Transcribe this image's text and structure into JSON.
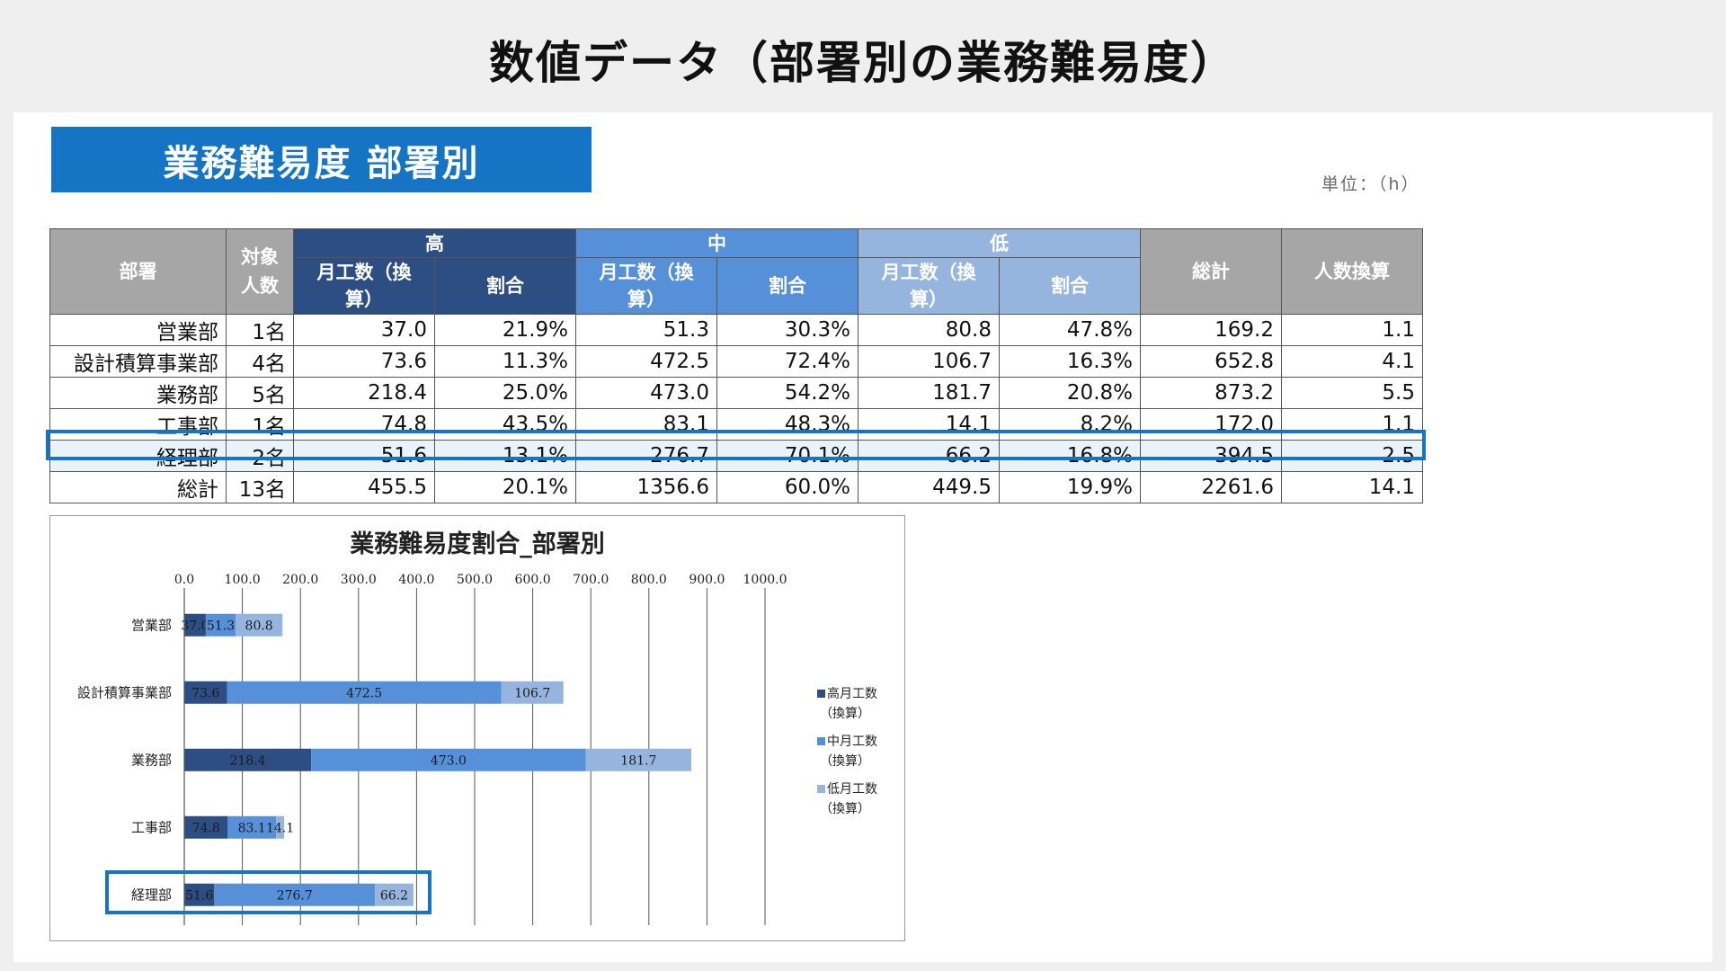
{
  "page_title": "数値データ（部署別の業務難易度）",
  "section_title": "業務難易度 部署別",
  "unit_label": "単位：（h）",
  "table": {
    "headers": {
      "department": "部署",
      "people": "対象人数",
      "high": "高",
      "mid": "中",
      "low": "低",
      "hours": "月工数（換算）",
      "ratio": "割合",
      "total": "総計",
      "headcount": "人数換算"
    },
    "rows": [
      {
        "dept": "営業部",
        "people": "1名",
        "high_h": "37.0",
        "high_r": "21.9%",
        "mid_h": "51.3",
        "mid_r": "30.3%",
        "low_h": "80.8",
        "low_r": "47.8%",
        "total": "169.2",
        "headcount": "1.1"
      },
      {
        "dept": "設計積算事業部",
        "people": "4名",
        "high_h": "73.6",
        "high_r": "11.3%",
        "mid_h": "472.5",
        "mid_r": "72.4%",
        "low_h": "106.7",
        "low_r": "16.3%",
        "total": "652.8",
        "headcount": "4.1"
      },
      {
        "dept": "業務部",
        "people": "5名",
        "high_h": "218.4",
        "high_r": "25.0%",
        "mid_h": "473.0",
        "mid_r": "54.2%",
        "low_h": "181.7",
        "low_r": "20.8%",
        "total": "873.2",
        "headcount": "5.5"
      },
      {
        "dept": "工事部",
        "people": "1名",
        "high_h": "74.8",
        "high_r": "43.5%",
        "mid_h": "83.1",
        "mid_r": "48.3%",
        "low_h": "14.1",
        "low_r": "8.2%",
        "total": "172.0",
        "headcount": "1.1"
      },
      {
        "dept": "経理部",
        "people": "2名",
        "high_h": "51.6",
        "high_r": "13.1%",
        "mid_h": "276.7",
        "mid_r": "70.1%",
        "low_h": "66.2",
        "low_r": "16.8%",
        "total": "394.5",
        "headcount": "2.5"
      },
      {
        "dept": "総計",
        "people": "13名",
        "high_h": "455.5",
        "high_r": "20.1%",
        "mid_h": "1356.6",
        "mid_r": "60.0%",
        "low_h": "449.5",
        "low_r": "19.9%",
        "total": "2261.6",
        "headcount": "14.1"
      }
    ],
    "highlight_row": "経理部"
  },
  "colors": {
    "high": "#2c4e83",
    "mid": "#5590d9",
    "low": "#96b5de",
    "header_gray": "#a6a6a6",
    "accent": "#1574c4"
  },
  "chart_data": {
    "type": "bar",
    "orientation": "horizontal",
    "stacked": true,
    "title": "業務難易度割合_部署別",
    "categories": [
      "営業部",
      "設計積算事業部",
      "業務部",
      "工事部",
      "経理部"
    ],
    "series": [
      {
        "name": "高月工数（換算）",
        "values": [
          37.0,
          73.6,
          218.4,
          74.8,
          51.6
        ],
        "color": "#2c4e83"
      },
      {
        "name": "中月工数（換算）",
        "values": [
          51.3,
          472.5,
          473.0,
          83.1,
          276.7
        ],
        "color": "#5590d9"
      },
      {
        "name": "低月工数（換算）",
        "values": [
          80.8,
          106.7,
          181.7,
          14.1,
          66.2
        ],
        "color": "#96b5de"
      }
    ],
    "xlim": [
      0,
      1000
    ],
    "xticks": [
      "0.0",
      "100.0",
      "200.0",
      "300.0",
      "400.0",
      "500.0",
      "600.0",
      "700.0",
      "800.0",
      "900.0",
      "1000.0"
    ],
    "xaxis_position": "top",
    "grid": true,
    "legend_position": "right",
    "data_labels": true,
    "highlight_category": "経理部"
  }
}
